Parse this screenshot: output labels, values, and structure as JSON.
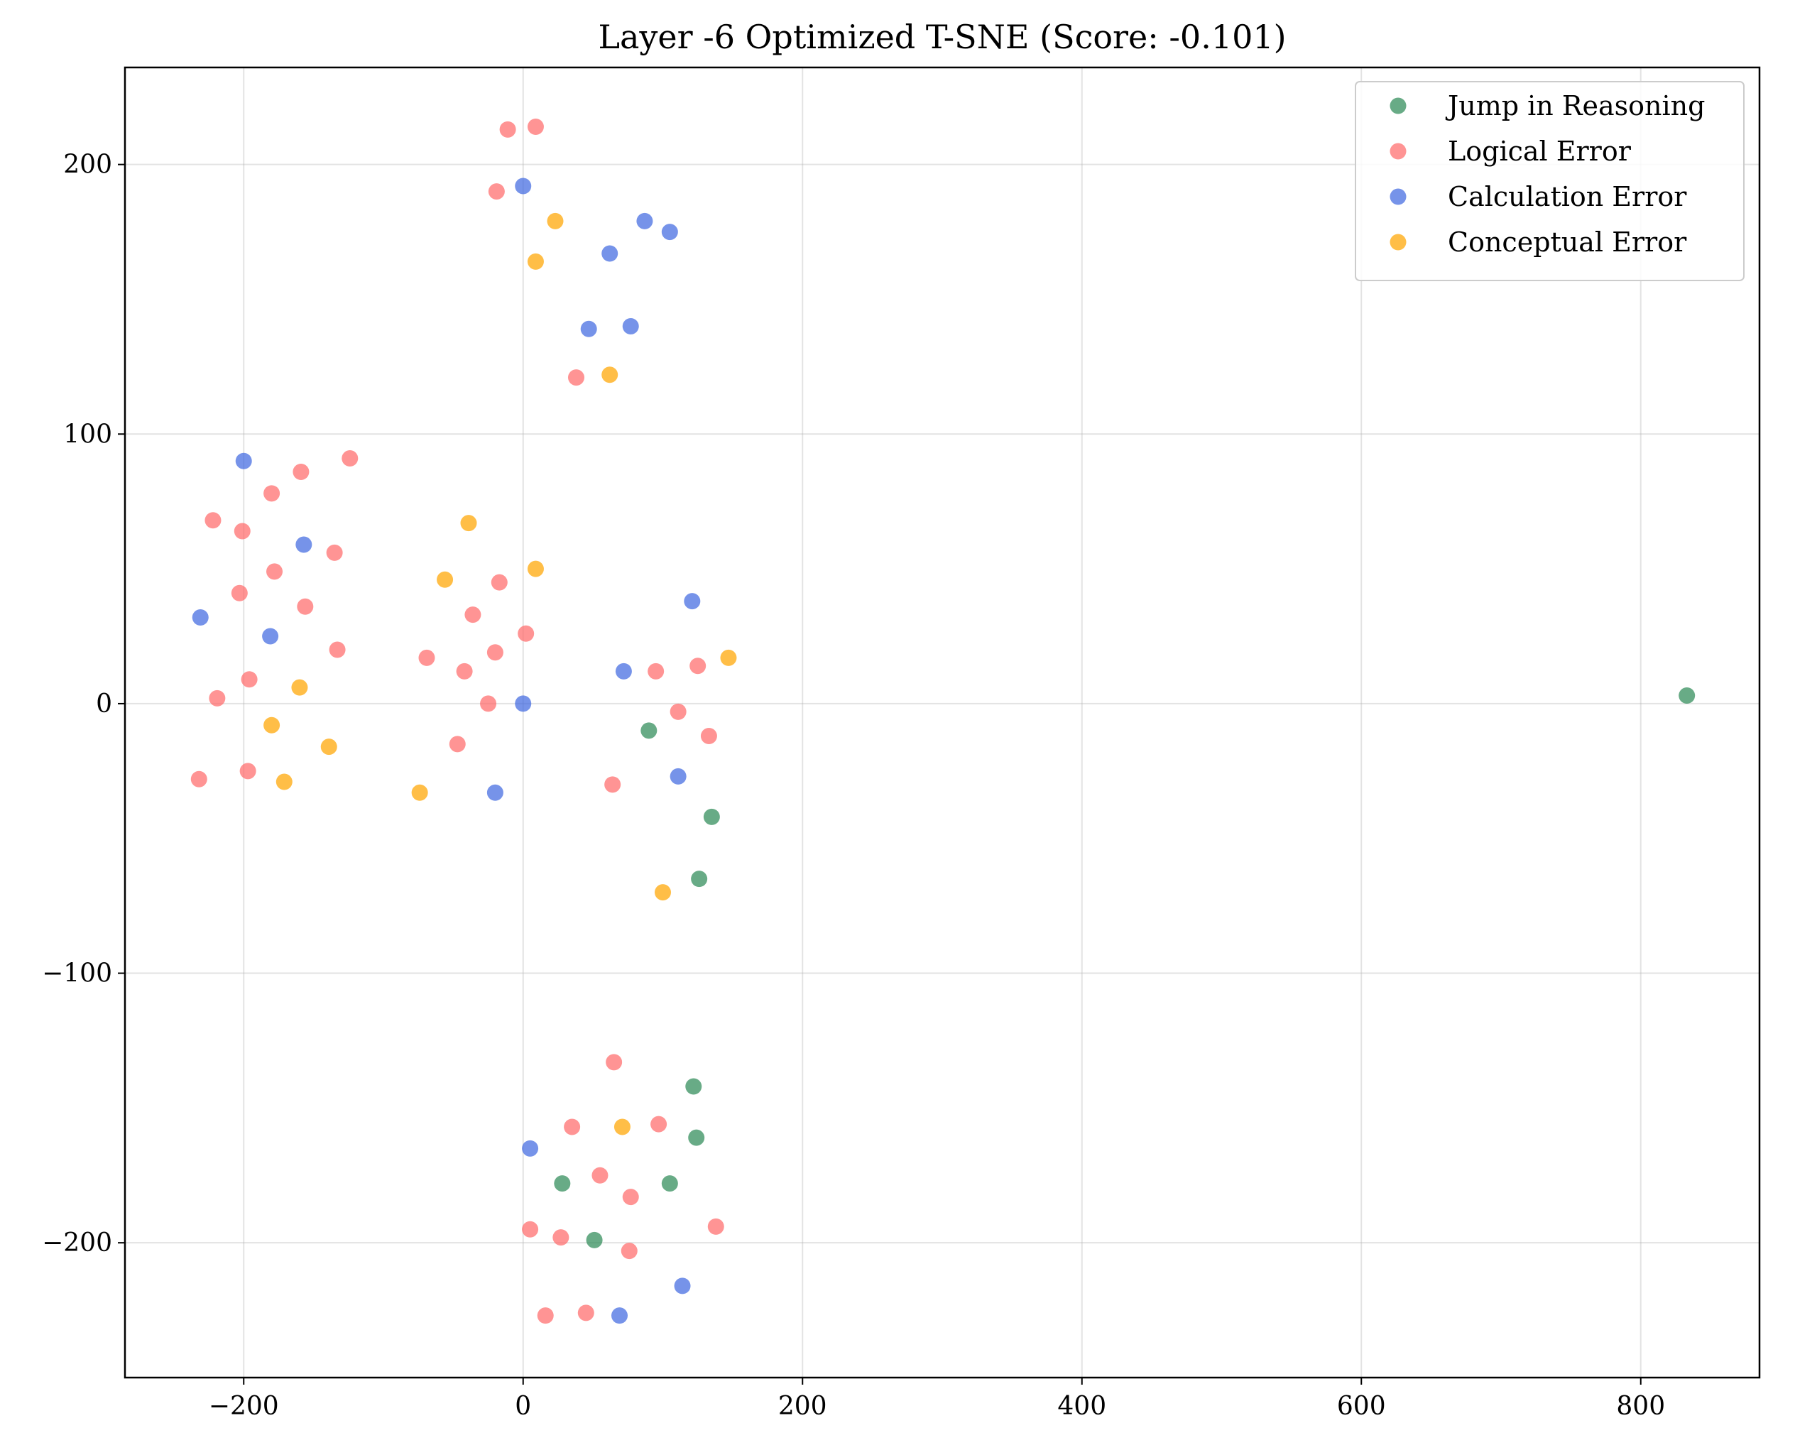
{
  "chart_data": {
    "type": "scatter",
    "title": "Layer -6 Optimized T-SNE (Score: -0.101)",
    "xlabel": "",
    "ylabel": "",
    "xlim": [
      -285,
      885
    ],
    "ylim": [
      -250,
      236
    ],
    "x_ticks": [
      -200,
      0,
      200,
      400,
      600,
      800
    ],
    "y_ticks": [
      -200,
      -100,
      0,
      100,
      200
    ],
    "x_tick_labels": [
      "−200",
      "0",
      "200",
      "400",
      "600",
      "800"
    ],
    "y_tick_labels": [
      "−200",
      "−100",
      "0",
      "100",
      "200"
    ],
    "grid": true,
    "legend_position": "top-right",
    "series": [
      {
        "name": "Jump in Reasoning",
        "color": "#2e8b57",
        "points": [
          [
            833,
            3
          ],
          [
            90,
            -10
          ],
          [
            135,
            -42
          ],
          [
            126,
            -65
          ],
          [
            122,
            -142
          ],
          [
            124,
            -161
          ],
          [
            28,
            -178
          ],
          [
            105,
            -178
          ],
          [
            51,
            -199
          ]
        ]
      },
      {
        "name": "Logical Error",
        "color": "#ff6b6b",
        "points": [
          [
            -11,
            213
          ],
          [
            9,
            214
          ],
          [
            -19,
            190
          ],
          [
            38,
            121
          ],
          [
            -124,
            91
          ],
          [
            -159,
            86
          ],
          [
            -180,
            78
          ],
          [
            -222,
            68
          ],
          [
            -201,
            64
          ],
          [
            -135,
            56
          ],
          [
            -178,
            49
          ],
          [
            -203,
            41
          ],
          [
            -156,
            36
          ],
          [
            -17,
            45
          ],
          [
            -36,
            33
          ],
          [
            2,
            26
          ],
          [
            -20,
            19
          ],
          [
            -69,
            17
          ],
          [
            -42,
            12
          ],
          [
            -133,
            20
          ],
          [
            -196,
            9
          ],
          [
            -219,
            2
          ],
          [
            -25,
            0
          ],
          [
            -47,
            -15
          ],
          [
            -197,
            -25
          ],
          [
            -232,
            -28
          ],
          [
            95,
            12
          ],
          [
            125,
            14
          ],
          [
            111,
            -3
          ],
          [
            133,
            -12
          ],
          [
            64,
            -30
          ],
          [
            65,
            -133
          ],
          [
            35,
            -157
          ],
          [
            97,
            -156
          ],
          [
            55,
            -175
          ],
          [
            77,
            -183
          ],
          [
            5,
            -195
          ],
          [
            27,
            -198
          ],
          [
            138,
            -194
          ],
          [
            76,
            -203
          ],
          [
            45,
            -226
          ],
          [
            16,
            -227
          ]
        ]
      },
      {
        "name": "Calculation Error",
        "color": "#4169e1",
        "points": [
          [
            0,
            192
          ],
          [
            87,
            179
          ],
          [
            105,
            175
          ],
          [
            62,
            167
          ],
          [
            47,
            139
          ],
          [
            77,
            140
          ],
          [
            -200,
            90
          ],
          [
            -157,
            59
          ],
          [
            -231,
            32
          ],
          [
            -181,
            25
          ],
          [
            121,
            38
          ],
          [
            72,
            12
          ],
          [
            0,
            0
          ],
          [
            -20,
            -33
          ],
          [
            111,
            -27
          ],
          [
            5,
            -165
          ],
          [
            114,
            -216
          ],
          [
            69,
            -227
          ]
        ]
      },
      {
        "name": "Conceptual Error",
        "color": "#ffa500",
        "points": [
          [
            23,
            179
          ],
          [
            9,
            164
          ],
          [
            62,
            122
          ],
          [
            -39,
            67
          ],
          [
            -56,
            46
          ],
          [
            9,
            50
          ],
          [
            147,
            17
          ],
          [
            -160,
            6
          ],
          [
            -180,
            -8
          ],
          [
            -139,
            -16
          ],
          [
            -171,
            -29
          ],
          [
            -74,
            -33
          ],
          [
            100,
            -70
          ],
          [
            71,
            -157
          ]
        ]
      }
    ]
  }
}
